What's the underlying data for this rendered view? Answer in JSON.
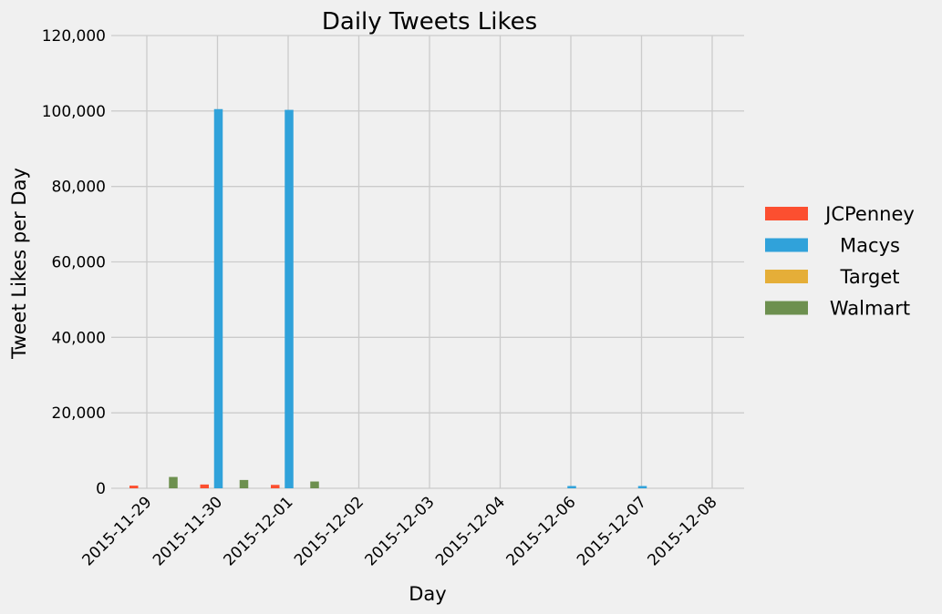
{
  "chart_data": {
    "type": "bar",
    "title": "Daily Tweets Likes",
    "xlabel": "Day",
    "ylabel": "Tweet Likes per Day",
    "categories": [
      "2015-11-29",
      "2015-11-30",
      "2015-12-01",
      "2015-12-02",
      "2015-12-03",
      "2015-12-04",
      "2015-12-06",
      "2015-12-07",
      "2015-12-08"
    ],
    "yticks": [
      "0",
      "20,000",
      "40,000",
      "60,000",
      "80,000",
      "100,000",
      "120,000"
    ],
    "ylim": [
      0,
      120000
    ],
    "grid": true,
    "legend_position": "right",
    "series": [
      {
        "name": "JCPenney",
        "color": "#fc4f30",
        "values": [
          700,
          1000,
          900,
          0,
          0,
          0,
          0,
          0,
          0
        ]
      },
      {
        "name": "Macys",
        "color": "#30a2da",
        "values": [
          0,
          100500,
          100300,
          0,
          0,
          0,
          600,
          600,
          0
        ]
      },
      {
        "name": "Target",
        "color": "#e5ae38",
        "values": [
          0,
          0,
          0,
          0,
          0,
          0,
          0,
          0,
          0
        ]
      },
      {
        "name": "Walmart",
        "color": "#6d904f",
        "values": [
          3000,
          2200,
          1800,
          0,
          0,
          0,
          0,
          0,
          0
        ]
      }
    ]
  }
}
